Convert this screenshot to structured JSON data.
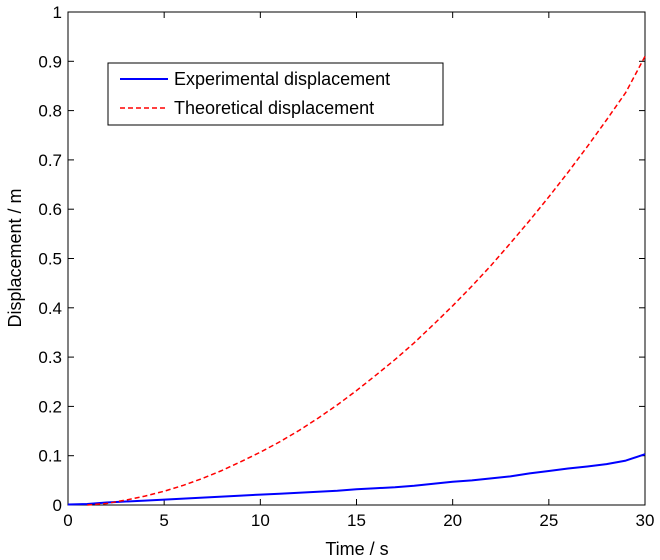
{
  "chart_data": {
    "type": "line",
    "title": "",
    "xlabel": "Time / s",
    "ylabel": "Displacement / m",
    "xlim": [
      0,
      30
    ],
    "ylim": [
      0,
      1
    ],
    "xticks": [
      0,
      5,
      10,
      15,
      20,
      25,
      30
    ],
    "yticks": [
      0,
      0.1,
      0.2,
      0.3,
      0.4,
      0.5,
      0.6,
      0.7,
      0.8,
      0.9,
      1
    ],
    "xtick_labels": [
      "0",
      "5",
      "10",
      "15",
      "20",
      "25",
      "30"
    ],
    "ytick_labels": [
      "0",
      "0.1",
      "0.2",
      "0.3",
      "0.4",
      "0.5",
      "0.6",
      "0.7",
      "0.8",
      "0.9",
      "1"
    ],
    "grid": false,
    "legend_position": "upper-left",
    "series": [
      {
        "name": "Experimental displacement",
        "color": "#0000ff",
        "style": "solid",
        "x": [
          0,
          1,
          2,
          3,
          4,
          5,
          6,
          7,
          8,
          9,
          10,
          11,
          12,
          13,
          14,
          15,
          16,
          17,
          18,
          19,
          20,
          21,
          22,
          23,
          24,
          25,
          26,
          27,
          28,
          29,
          30
        ],
        "y": [
          0.001,
          0.002,
          0.005,
          0.007,
          0.009,
          0.011,
          0.013,
          0.015,
          0.017,
          0.019,
          0.021,
          0.023,
          0.025,
          0.027,
          0.029,
          0.032,
          0.034,
          0.036,
          0.039,
          0.043,
          0.047,
          0.05,
          0.054,
          0.058,
          0.064,
          0.069,
          0.074,
          0.078,
          0.083,
          0.09,
          0.103
        ]
      },
      {
        "name": "Theoretical displacement",
        "color": "#ff0000",
        "style": "dashed",
        "x": [
          1,
          2,
          3,
          4,
          5,
          6,
          7,
          8,
          9,
          10,
          11,
          12,
          13,
          14,
          15,
          16,
          17,
          18,
          19,
          20,
          21,
          22,
          23,
          24,
          25,
          26,
          27,
          28,
          29,
          30
        ],
        "y": [
          0.0,
          0.003,
          0.01,
          0.018,
          0.028,
          0.04,
          0.054,
          0.07,
          0.088,
          0.107,
          0.128,
          0.151,
          0.176,
          0.203,
          0.232,
          0.263,
          0.295,
          0.329,
          0.366,
          0.404,
          0.444,
          0.486,
          0.531,
          0.577,
          0.625,
          0.675,
          0.727,
          0.781,
          0.837,
          0.91
        ]
      }
    ]
  }
}
